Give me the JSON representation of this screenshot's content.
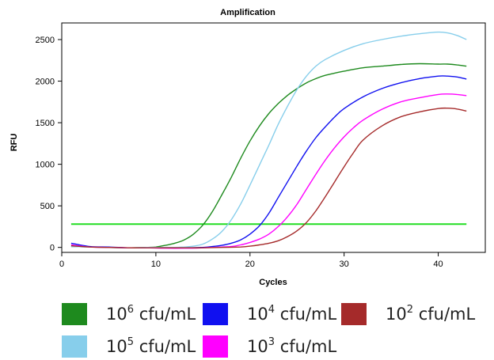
{
  "chart_data": {
    "type": "line",
    "title": "Amplification",
    "xlabel": "Cycles",
    "ylabel": "RFU",
    "xlim": [
      0,
      45
    ],
    "ylim": [
      -60,
      2700
    ],
    "x_ticks": [
      "0",
      "10",
      "20",
      "30",
      "40"
    ],
    "y_ticks": [
      "0",
      "500",
      "1000",
      "1500",
      "2000",
      "2500"
    ],
    "grid": false,
    "legend_position": "bottom",
    "threshold": {
      "value": 280,
      "x_range": [
        1,
        43
      ],
      "color": "#22dd22"
    },
    "series": [
      {
        "name": "10^6 cfu/mL",
        "color": "#1e8a1e",
        "x": [
          1,
          3,
          5,
          7,
          9,
          10,
          11,
          12,
          13,
          14,
          15,
          16,
          17,
          18,
          19,
          20,
          21,
          22,
          23,
          24,
          25,
          26,
          27,
          28,
          30,
          32,
          34,
          36,
          38,
          40,
          41,
          42,
          43
        ],
        "y": [
          10,
          5,
          0,
          -5,
          0,
          5,
          25,
          50,
          90,
          160,
          270,
          430,
          630,
          840,
          1070,
          1280,
          1460,
          1610,
          1730,
          1830,
          1910,
          1980,
          2030,
          2070,
          2120,
          2160,
          2180,
          2200,
          2210,
          2205,
          2205,
          2195,
          2180
        ]
      },
      {
        "name": "10^5 cfu/mL",
        "color": "#87ceeb",
        "x": [
          1,
          3,
          5,
          7,
          9,
          11,
          12,
          13,
          14,
          15,
          16,
          17,
          18,
          19,
          20,
          21,
          22,
          23,
          24,
          25,
          26,
          27,
          28,
          30,
          32,
          34,
          36,
          38,
          40,
          41,
          42,
          43
        ],
        "y": [
          10,
          5,
          0,
          -5,
          0,
          0,
          0,
          5,
          15,
          40,
          100,
          190,
          330,
          520,
          750,
          990,
          1230,
          1480,
          1700,
          1900,
          2060,
          2180,
          2260,
          2370,
          2450,
          2500,
          2540,
          2570,
          2590,
          2580,
          2550,
          2500
        ]
      },
      {
        "name": "10^4 cfu/mL",
        "color": "#1010f0",
        "x": [
          1,
          3,
          5,
          7,
          9,
          11,
          13,
          15,
          16,
          17,
          18,
          19,
          20,
          21,
          22,
          23,
          24,
          25,
          26,
          27,
          28,
          29,
          30,
          32,
          34,
          36,
          38,
          40,
          41,
          42,
          43
        ],
        "y": [
          50,
          10,
          5,
          -5,
          -5,
          -5,
          -5,
          0,
          10,
          25,
          50,
          90,
          160,
          260,
          410,
          600,
          790,
          980,
          1160,
          1320,
          1450,
          1570,
          1670,
          1810,
          1910,
          1980,
          2030,
          2060,
          2060,
          2050,
          2025
        ]
      },
      {
        "name": "10^3 cfu/mL",
        "color": "#ff00ff",
        "x": [
          1,
          3,
          5,
          7,
          9,
          11,
          13,
          15,
          17,
          18,
          19,
          20,
          21,
          22,
          23,
          24,
          25,
          26,
          27,
          28,
          29,
          30,
          31,
          32,
          34,
          36,
          38,
          40,
          41,
          42,
          43
        ],
        "y": [
          30,
          5,
          0,
          -5,
          -5,
          -10,
          -10,
          -5,
          5,
          10,
          30,
          60,
          100,
          160,
          250,
          370,
          520,
          700,
          880,
          1050,
          1200,
          1330,
          1440,
          1530,
          1660,
          1750,
          1800,
          1840,
          1845,
          1840,
          1825
        ]
      },
      {
        "name": "10^2 cfu/mL",
        "color": "#a52a2a",
        "x": [
          1,
          3,
          5,
          7,
          9,
          11,
          13,
          15,
          17,
          19,
          20,
          21,
          22,
          23,
          24,
          25,
          26,
          27,
          28,
          29,
          30,
          31,
          32,
          34,
          36,
          38,
          40,
          41,
          42,
          43
        ],
        "y": [
          20,
          5,
          0,
          -5,
          -5,
          -5,
          -5,
          -5,
          0,
          5,
          15,
          30,
          50,
          80,
          130,
          200,
          300,
          440,
          610,
          790,
          970,
          1140,
          1290,
          1460,
          1570,
          1630,
          1670,
          1675,
          1665,
          1640
        ]
      }
    ]
  },
  "legend": {
    "items": [
      {
        "base": "10",
        "exp": "6",
        "unit": " cfu/mL",
        "color": "#1e8a1e"
      },
      {
        "base": "10",
        "exp": "4",
        "unit": " cfu/mL",
        "color": "#1010f0"
      },
      {
        "base": "10",
        "exp": "2",
        "unit": " cfu/mL",
        "color": "#a52a2a"
      },
      {
        "base": "10",
        "exp": "5",
        "unit": " cfu/mL",
        "color": "#87ceeb"
      },
      {
        "base": "10",
        "exp": "3",
        "unit": " cfu/mL",
        "color": "#ff00ff"
      }
    ]
  }
}
